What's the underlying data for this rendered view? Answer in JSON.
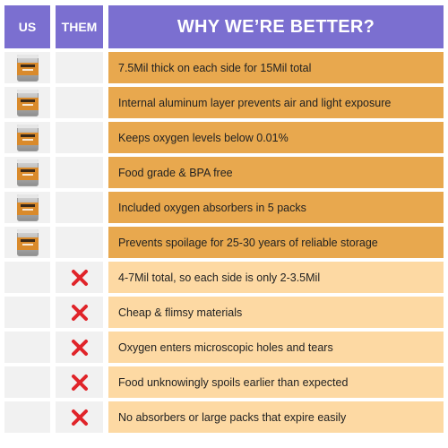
{
  "header": {
    "us": "US",
    "them": "THEM",
    "title": "WHY WE’RE BETTER?"
  },
  "colors": {
    "header_bg": "#7b6fd0",
    "us_row_bg": "#e8a84e",
    "them_row_bg": "#fdd9a3",
    "x_mark": "#e0242a"
  },
  "rows": [
    {
      "text": "7.5Mil thick on each side for 15Mil total",
      "us": "product-bag-icon",
      "them": ""
    },
    {
      "text": "Internal aluminum layer prevents air and light exposure",
      "us": "product-bag-icon",
      "them": ""
    },
    {
      "text": "Keeps oxygen levels below 0.01%",
      "us": "product-bag-icon",
      "them": ""
    },
    {
      "text": "Food grade & BPA free",
      "us": "product-bag-icon",
      "them": ""
    },
    {
      "text": "Included oxygen absorbers in 5 packs",
      "us": "product-bag-icon",
      "them": ""
    },
    {
      "text": "Prevents spoilage for 25-30 years of reliable storage",
      "us": "product-bag-icon",
      "them": ""
    },
    {
      "text": "4-7Mil total, so each side is only 2-3.5Mil",
      "us": "",
      "them": "x-icon"
    },
    {
      "text": "Cheap & flimsy materials",
      "us": "",
      "them": "x-icon"
    },
    {
      "text": "Oxygen enters microscopic holes and tears",
      "us": "",
      "them": "x-icon"
    },
    {
      "text": "Food unknowingly spoils earlier than expected",
      "us": "",
      "them": "x-icon"
    },
    {
      "text": "No absorbers or large packs that expire easily",
      "us": "",
      "them": "x-icon"
    }
  ]
}
